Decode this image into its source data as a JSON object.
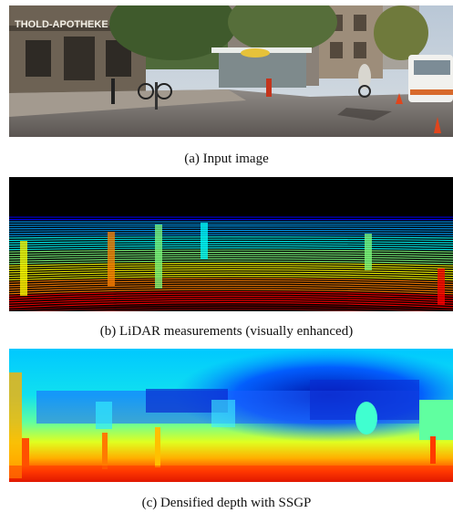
{
  "figure": {
    "panels": [
      {
        "caption": "(a) Input image",
        "content": "photo",
        "sign_text": "THOLD-APOTHEKE"
      },
      {
        "caption": "(b) LiDAR measurements (visually enhanced)",
        "content": "lidar"
      },
      {
        "caption": "(c) Densified depth with SSGP",
        "content": "depth"
      }
    ],
    "colormap": [
      "#00007f",
      "#0000ff",
      "#00a0ff",
      "#00ffff",
      "#7fff7f",
      "#ffff00",
      "#ff8000",
      "#ff0000",
      "#7f0000"
    ]
  }
}
